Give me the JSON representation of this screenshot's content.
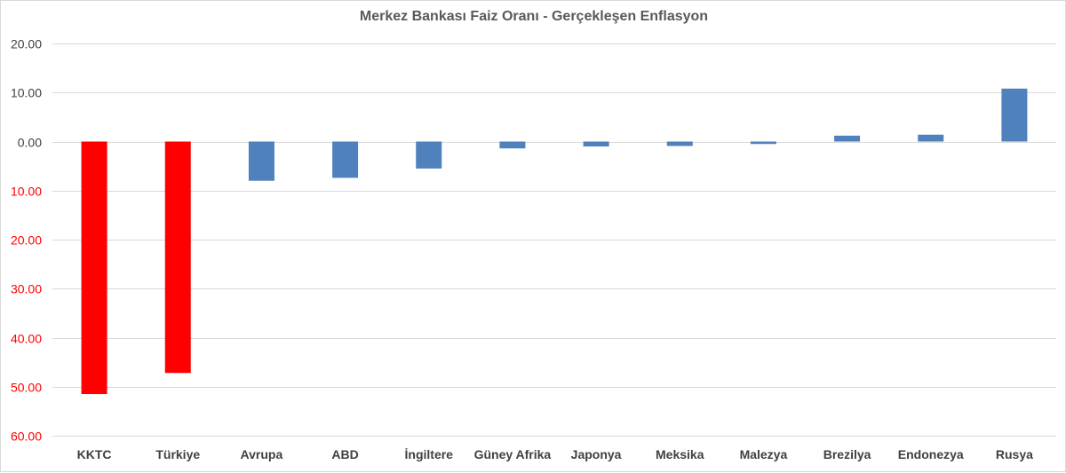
{
  "chart_data": {
    "type": "bar",
    "title": "Merkez Bankası Faiz Oranı - Gerçekleşen Enflasyon",
    "xlabel": "",
    "ylabel": "",
    "ylim": [
      -60,
      20
    ],
    "grid": true,
    "tick_values": [
      20,
      10,
      0,
      -10,
      -20,
      -30,
      -40,
      -50,
      -60
    ],
    "tick_labels": [
      "20.00",
      "10.00",
      "0.00",
      "10.00",
      "20.00",
      "30.00",
      "40.00",
      "50.00",
      "60.00"
    ],
    "categories": [
      "KKTC",
      "Türkiye",
      "Avrupa",
      "ABD",
      "İngiltere",
      "Güney Afrika",
      "Japonya",
      "Meksika",
      "Malezya",
      "Brezilya",
      "Endonezya",
      "Rusya"
    ],
    "values": [
      -51.5,
      -47.2,
      -8.0,
      -7.4,
      -5.5,
      -1.4,
      -1.0,
      -0.9,
      -0.5,
      1.2,
      1.4,
      10.8
    ],
    "colors": {
      "highlight_bar": "#ff0000",
      "default_bar": "#4f81bd",
      "negative_tick": "#ff0000",
      "positive_tick": "#404040"
    },
    "highlight_categories": [
      "KKTC",
      "Türkiye"
    ]
  }
}
